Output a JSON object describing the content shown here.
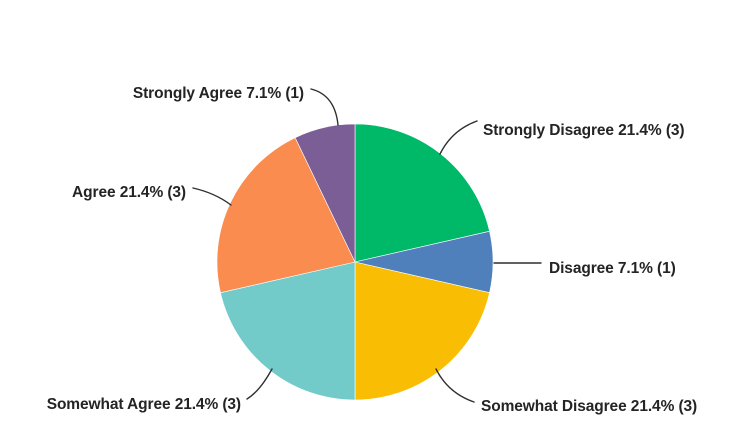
{
  "chart_data": {
    "type": "pie",
    "start": "top",
    "direction": "clockwise",
    "background": "#ffffff",
    "label_color": "#242424",
    "leader_line_color": "#2f2f2f",
    "slices": [
      {
        "label": "Strongly Disagree",
        "percent": 21.4,
        "count": 3,
        "color": "#00B968",
        "text": "Strongly Disagree 21.4% (3)"
      },
      {
        "label": "Disagree",
        "percent": 7.1,
        "count": 1,
        "color": "#5080BC",
        "text": "Disagree 7.1% (1)"
      },
      {
        "label": "Somewhat Disagree",
        "percent": 21.4,
        "count": 3,
        "color": "#F9BE03",
        "text": "Somewhat Disagree 21.4% (3)"
      },
      {
        "label": "Somewhat Agree",
        "percent": 21.4,
        "count": 3,
        "color": "#72CBC9",
        "text": "Somewhat Agree 21.4% (3)"
      },
      {
        "label": "Agree",
        "percent": 21.4,
        "count": 3,
        "color": "#FA8C4F",
        "text": "Agree 21.4% (3)"
      },
      {
        "label": "Strongly Agree",
        "percent": 7.1,
        "count": 1,
        "color": "#7C5E97",
        "text": "Strongly Agree 7.1% (1)"
      }
    ]
  }
}
